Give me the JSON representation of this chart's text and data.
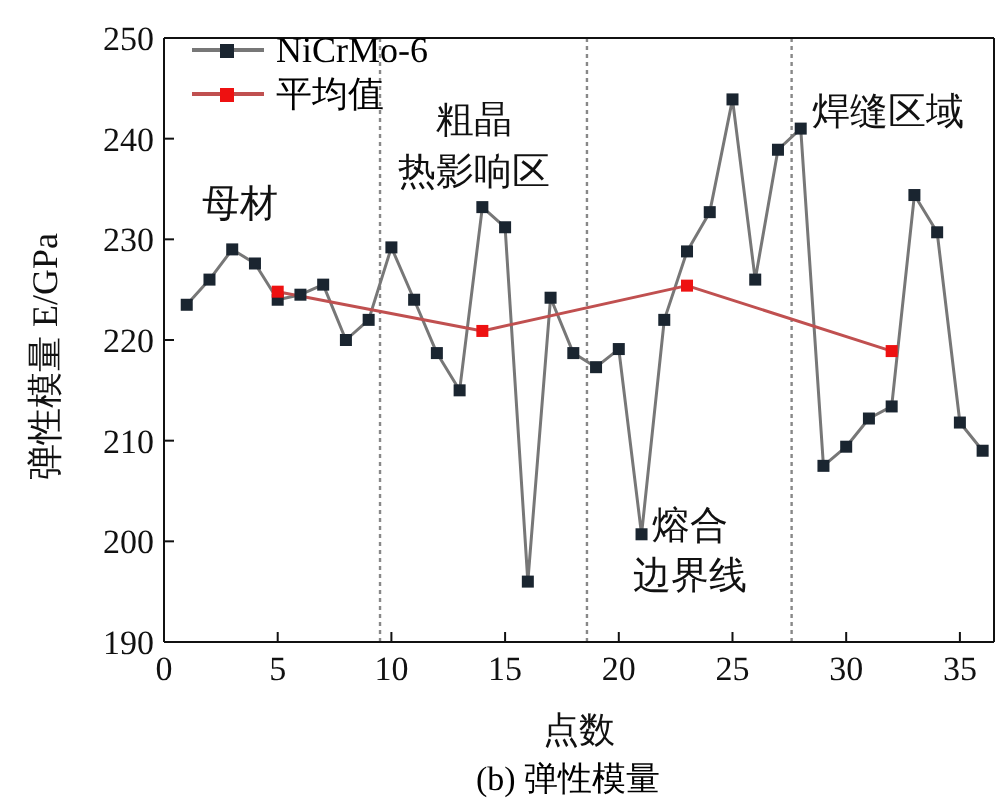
{
  "chart_data": {
    "type": "line",
    "xlabel": "点数",
    "ylabel": "弹性模量 E/GPa",
    "xlim": [
      0,
      36.5
    ],
    "ylim": [
      190,
      250
    ],
    "xticks": [
      0,
      5,
      10,
      15,
      20,
      25,
      30,
      35
    ],
    "yticks": [
      190,
      200,
      210,
      220,
      230,
      240,
      250
    ],
    "marker": "square",
    "legend": "top left",
    "series": [
      {
        "name": "NiCrMo-6",
        "color": "#1a2530",
        "x": [
          1,
          2,
          3,
          4,
          5,
          6,
          7,
          8,
          9,
          10,
          11,
          12,
          13,
          14,
          15,
          16,
          17,
          18,
          19,
          20,
          21,
          22,
          23,
          24,
          25,
          26,
          27,
          28,
          29,
          30,
          31,
          32,
          33,
          34,
          35,
          36
        ],
        "values": [
          223.5,
          226,
          229,
          227.6,
          224,
          224.5,
          225.5,
          220,
          222,
          229.2,
          224,
          218.7,
          215,
          233.2,
          231.2,
          196,
          224.2,
          218.7,
          217.3,
          219.1,
          200.7,
          222,
          228.8,
          232.7,
          243.9,
          226,
          238.9,
          241,
          207.5,
          209.4,
          212.2,
          213.4,
          234.4,
          230.7,
          211.8,
          209
        ]
      },
      {
        "name": "平均值",
        "color": "#ee1111",
        "x": [
          5,
          14,
          23,
          32
        ],
        "values": [
          224.8,
          220.9,
          225.4,
          218.9
        ]
      }
    ],
    "ref_lines": [
      {
        "axis": "x",
        "value": 9.5,
        "line_style": "dotted",
        "color": "#888888"
      },
      {
        "axis": "x",
        "value": 18.6,
        "line_style": "dotted",
        "color": "#888888"
      },
      {
        "axis": "x",
        "value": 27.6,
        "line_style": "dotted",
        "color": "#888888"
      }
    ],
    "annotations": [
      "母材",
      "粗晶",
      "热影响区",
      "熔合",
      "边界线",
      "焊缝区域",
      "(b) 弹性模量"
    ]
  }
}
